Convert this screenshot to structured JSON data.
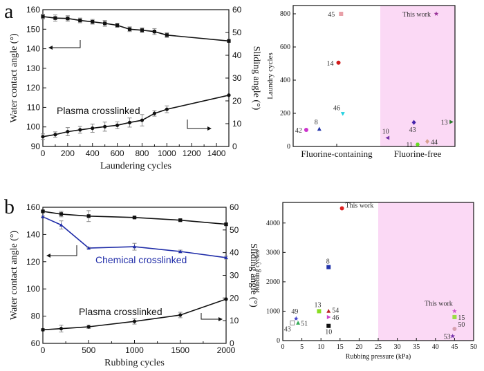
{
  "panels": {
    "a": "a",
    "b": "b"
  },
  "chart_data": [
    {
      "id": "a-left",
      "type": "line",
      "xlabel": "Laundering cycles",
      "ylabel": "Water contact angle (°)",
      "y2label": "Sliding angle (°)",
      "xlim": [
        0,
        1500
      ],
      "ylim": [
        90,
        160
      ],
      "y2lim": [
        0,
        60
      ],
      "xticks": [
        "0",
        "200",
        "400",
        "600",
        "800",
        "1000",
        "1200",
        "1400"
      ],
      "yticks": [
        "90",
        "100",
        "110",
        "120",
        "130",
        "140",
        "150",
        "160"
      ],
      "y2ticks": [
        "0",
        "10",
        "20",
        "30",
        "40",
        "50",
        "60"
      ],
      "annotation": "Plasma crosslinked",
      "series": [
        {
          "name": "Water contact angle",
          "axis": "left",
          "color": "#111111",
          "marker": "square",
          "x": [
            0,
            100,
            200,
            300,
            400,
            500,
            600,
            700,
            800,
            900,
            1000,
            1500
          ],
          "y": [
            156.5,
            155.7,
            155.5,
            154.5,
            153.8,
            153,
            152,
            150,
            149.5,
            148.8,
            147,
            144
          ],
          "err": [
            1.2,
            1.6,
            1.4,
            1.2,
            1.2,
            1.5,
            1.0,
            1.2,
            1.2,
            1.5,
            1.2,
            0
          ]
        },
        {
          "name": "Sliding angle",
          "axis": "right",
          "color": "#111111",
          "marker": "circle",
          "x": [
            0,
            100,
            200,
            300,
            400,
            500,
            600,
            700,
            800,
            900,
            1000,
            1500
          ],
          "y": [
            4.3,
            5.2,
            6.5,
            7.3,
            8,
            8.7,
            9.3,
            10.5,
            11.5,
            14.5,
            16.3,
            22.5
          ],
          "err": [
            1.2,
            1.2,
            1.8,
            1.5,
            1.8,
            2.0,
            1.5,
            2.0,
            2.5,
            1.2,
            1.5,
            0
          ]
        }
      ]
    },
    {
      "id": "a-right",
      "type": "scatter",
      "ylabel": "Laundry cycles",
      "ylim": [
        0,
        850
      ],
      "yticks": [
        "0",
        "200",
        "400",
        "600",
        "800"
      ],
      "categories": [
        "Fluorine-containing",
        "Fluorine-free"
      ],
      "points": [
        {
          "label": "45",
          "group": 0,
          "xpos": 0.55,
          "y": 800,
          "color": "#e8a0a8",
          "shape": "square"
        },
        {
          "label": "14",
          "group": 0,
          "xpos": 0.52,
          "y": 505,
          "color": "#d11a1a",
          "shape": "circle"
        },
        {
          "label": "46",
          "group": 0,
          "xpos": 0.57,
          "y": 198,
          "color": "#22d0e0",
          "shape": "tri-down"
        },
        {
          "label": "8",
          "group": 0,
          "xpos": 0.3,
          "y": 105,
          "color": "#2233aa",
          "shape": "tri-up"
        },
        {
          "label": "42",
          "group": 0,
          "xpos": 0.15,
          "y": 100,
          "color": "#cc33cc",
          "shape": "circle"
        },
        {
          "label": "This work",
          "group": 1,
          "xpos": 0.75,
          "y": 800,
          "color": "#993399",
          "shape": "star"
        },
        {
          "label": "43",
          "group": 1,
          "xpos": 0.45,
          "y": 145,
          "color": "#4422aa",
          "shape": "diamond"
        },
        {
          "label": "13",
          "group": 1,
          "xpos": 0.95,
          "y": 148,
          "color": "#2a7a2a",
          "shape": "tri-right"
        },
        {
          "label": "10",
          "group": 1,
          "xpos": 0.1,
          "y": 52,
          "color": "#7733aa",
          "shape": "tri-left"
        },
        {
          "label": "44",
          "group": 1,
          "xpos": 0.63,
          "y": 30,
          "color": "#d8a090",
          "shape": "diamond"
        },
        {
          "label": "11",
          "group": 1,
          "xpos": 0.5,
          "y": 12,
          "color": "#66dd22",
          "shape": "hex"
        }
      ]
    },
    {
      "id": "b-left",
      "type": "line",
      "xlabel": "Rubbing cycles",
      "ylabel": "Water contact angle (°)",
      "y2label": "Sliding angle (°)",
      "xlim": [
        0,
        2000
      ],
      "ylim": [
        60,
        160
      ],
      "y2lim": [
        0,
        60
      ],
      "xticks": [
        "0",
        "500",
        "1000",
        "1500",
        "2000"
      ],
      "yticks": [
        "60",
        "80",
        "100",
        "120",
        "140",
        "160"
      ],
      "y2ticks": [
        "0",
        "10",
        "20",
        "30",
        "40",
        "50",
        "60"
      ],
      "annotations": [
        "Chemical crosslinked",
        "Plasma crosslinked"
      ],
      "series": [
        {
          "name": "Plasma crosslinked WCA",
          "axis": "left",
          "color": "#111111",
          "marker": "square",
          "x": [
            0,
            200,
            500,
            1000,
            1500,
            2000
          ],
          "y": [
            157,
            155,
            153.5,
            152.5,
            150.5,
            147.5
          ],
          "err": [
            0.5,
            2,
            4,
            0.8,
            0.8,
            0.8
          ]
        },
        {
          "name": "Chemical crosslinked WCA",
          "axis": "left",
          "color": "#1f2ca8",
          "marker": "tri-up",
          "x": [
            0,
            200,
            500,
            1000,
            1500,
            2000
          ],
          "y": [
            153,
            147,
            130,
            131,
            127.5,
            123
          ],
          "err": [
            0.5,
            3,
            0.5,
            2.5,
            1,
            1
          ]
        },
        {
          "name": "Plasma crosslinked SA",
          "axis": "right",
          "color": "#111111",
          "marker": "circle",
          "x": [
            0,
            200,
            500,
            1000,
            1500,
            2000
          ],
          "y": [
            6,
            6.5,
            7.3,
            9.7,
            12.5,
            19.5
          ],
          "err": [
            0.5,
            1.5,
            0.7,
            1.2,
            1.2,
            0
          ]
        }
      ]
    },
    {
      "id": "b-right",
      "type": "scatter",
      "xlabel": "Rubbing pressure (kPa)",
      "ylabel": "Rubbing cycles",
      "xlim": [
        0,
        50
      ],
      "ylim": [
        0,
        4700
      ],
      "xticks": [
        "0",
        "5",
        "10",
        "15",
        "20",
        "25",
        "30",
        "35",
        "40",
        "45",
        "50"
      ],
      "yticks": [
        "0",
        "1000",
        "2000",
        "3000",
        "4000"
      ],
      "shaded_from": 25,
      "points": [
        {
          "label": "This work",
          "x": 15.5,
          "y": 4500,
          "color": "#dd2222",
          "shape": "circle"
        },
        {
          "label": "8",
          "x": 12,
          "y": 2500,
          "color": "#2233aa",
          "shape": "square"
        },
        {
          "label": "49",
          "x": 3.5,
          "y": 750,
          "color": "#4444cc",
          "shape": "star"
        },
        {
          "label": "51",
          "x": 4,
          "y": 600,
          "color": "#33aa55",
          "shape": "tri-up"
        },
        {
          "label": "43",
          "x": 2.5,
          "y": 600,
          "color": "#888888",
          "shape": "open-square"
        },
        {
          "label": "13",
          "x": 9.5,
          "y": 1000,
          "color": "#88dd22",
          "shape": "square"
        },
        {
          "label": "54",
          "x": 12,
          "y": 1000,
          "color": "#bb2222",
          "shape": "tri-up"
        },
        {
          "label": "46",
          "x": 12,
          "y": 800,
          "color": "#cc44cc",
          "shape": "tri-right"
        },
        {
          "label": "10",
          "x": 12,
          "y": 500,
          "color": "#111111",
          "shape": "square"
        },
        {
          "label": "This work",
          "x": 45,
          "y": 1000,
          "color": "#cc55cc",
          "shape": "star"
        },
        {
          "label": "15",
          "x": 45,
          "y": 800,
          "color": "#99dd44",
          "shape": "square"
        },
        {
          "label": "50",
          "x": 45,
          "y": 400,
          "color": "#d8a0b0",
          "shape": "circle"
        },
        {
          "label": "53",
          "x": 44.5,
          "y": 150,
          "color": "#7733aa",
          "shape": "star"
        }
      ]
    }
  ]
}
